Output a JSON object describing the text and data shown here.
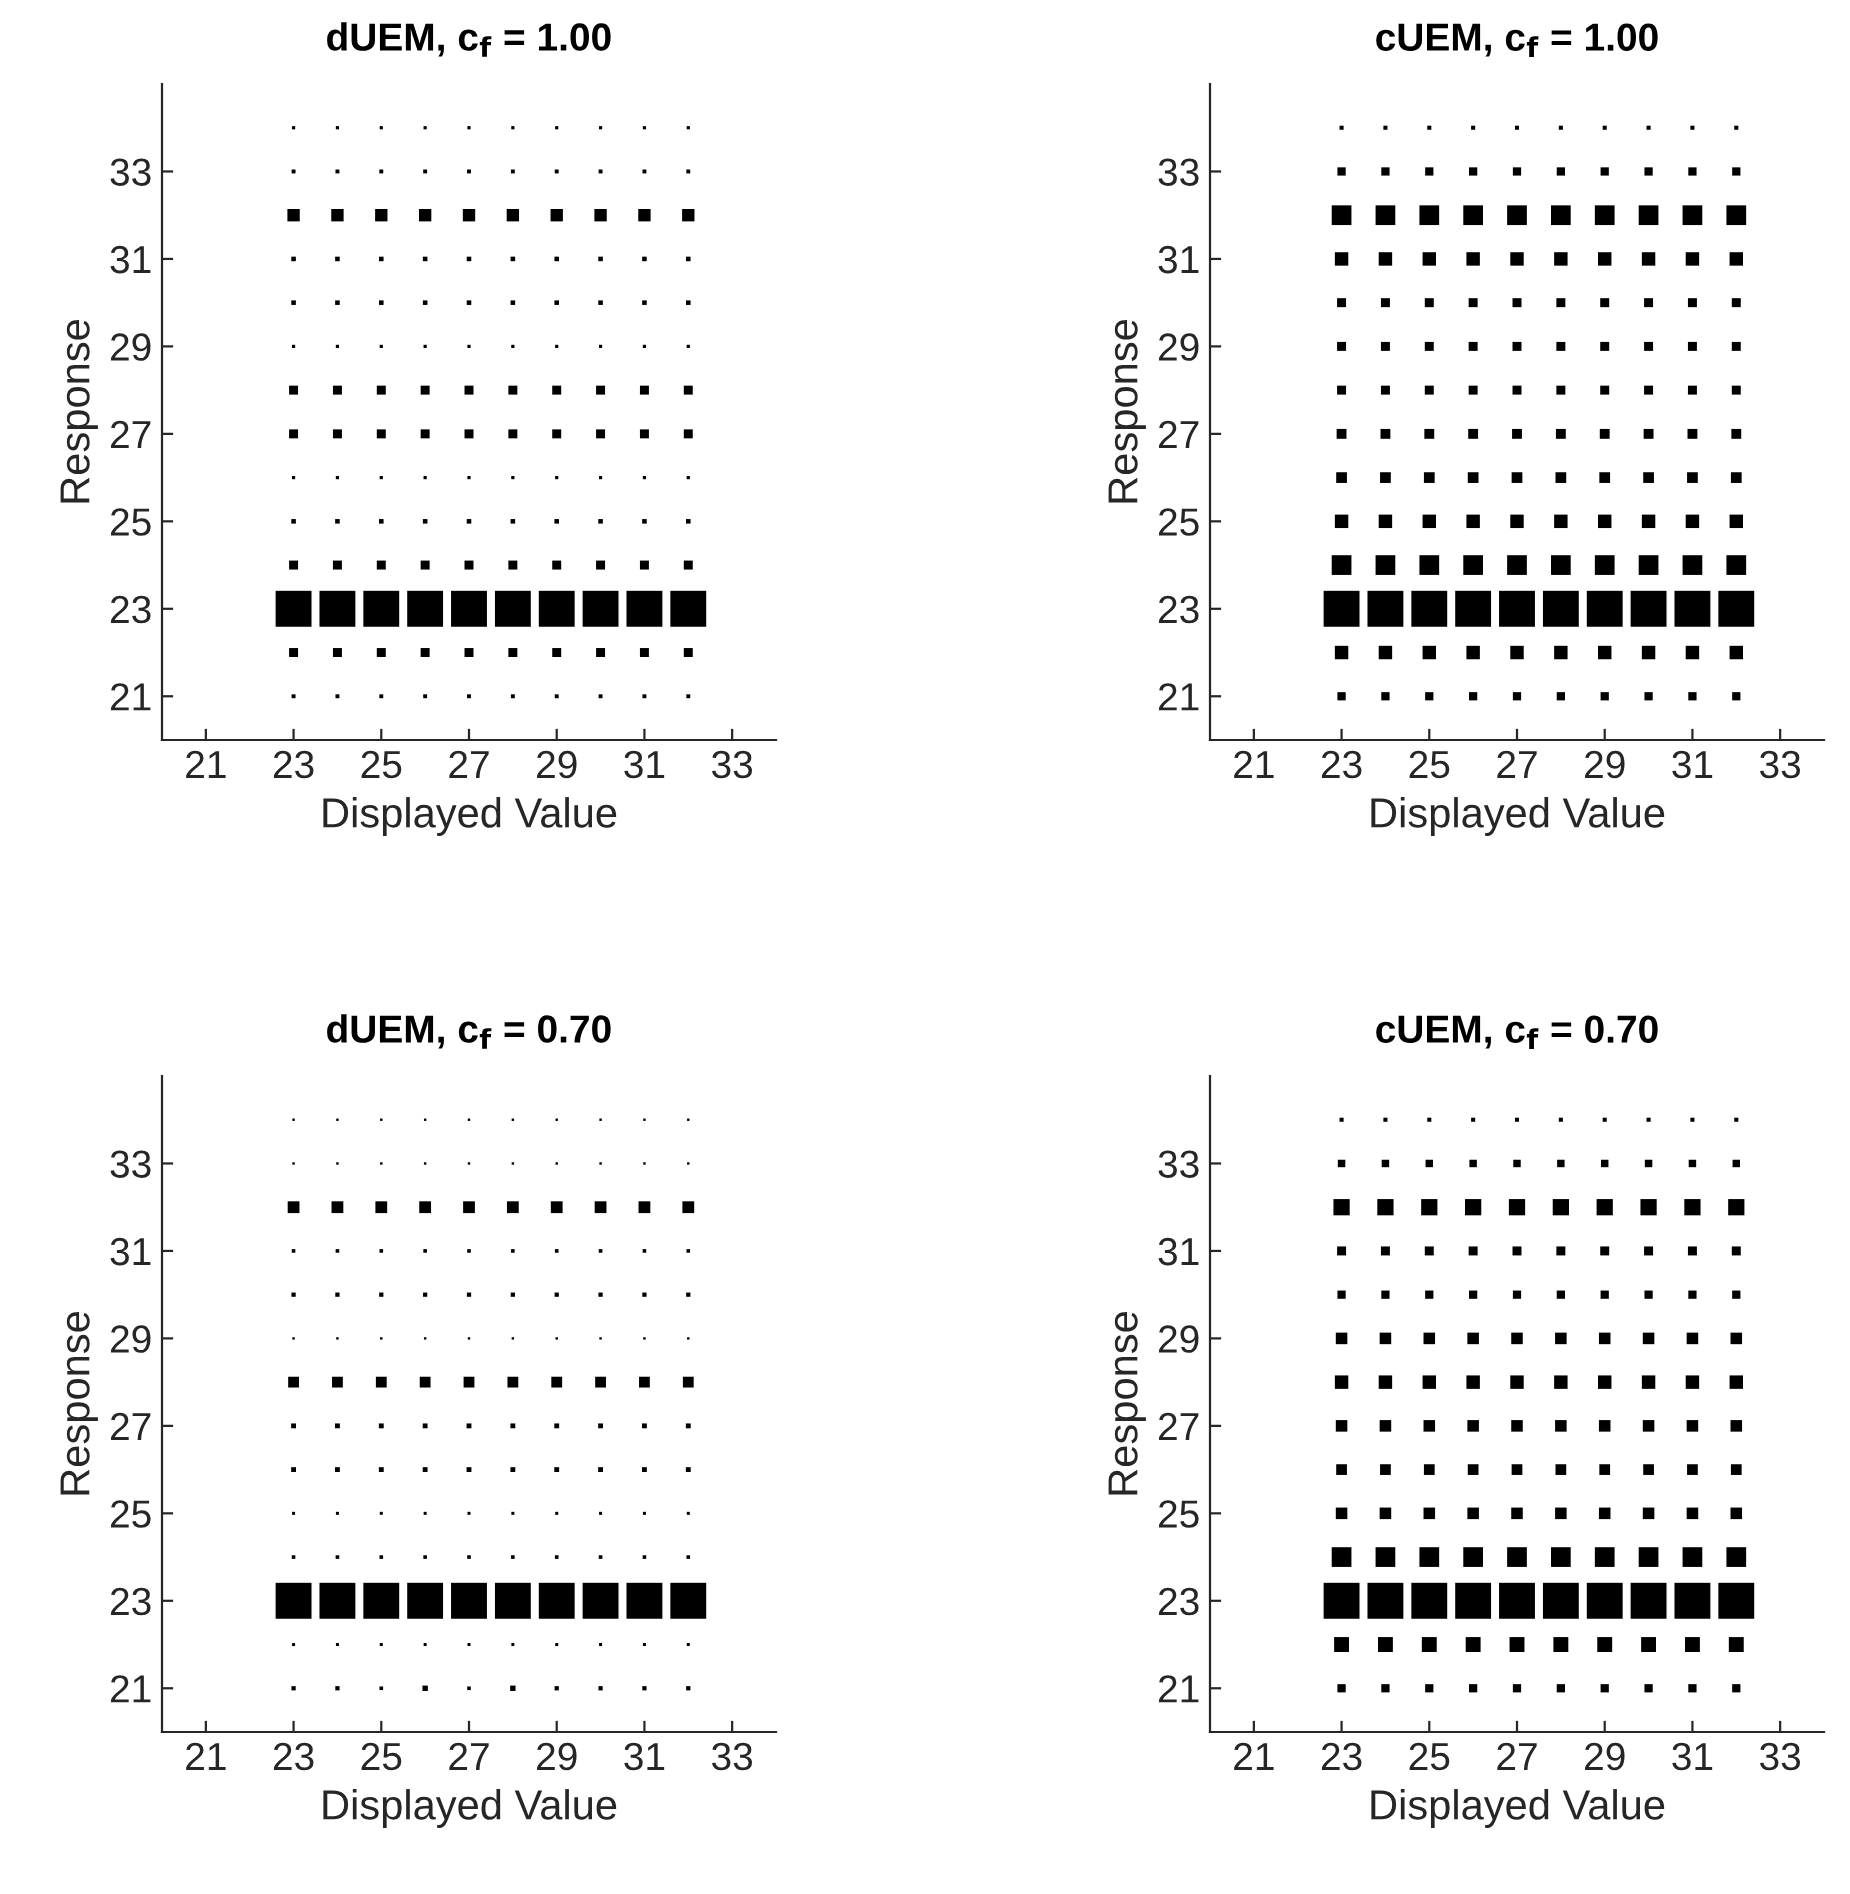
{
  "chart_data": [
    {
      "type": "bubble",
      "title": "dUEM, c$_{f}$ = 1.00",
      "xlabel": "Displayed Value",
      "ylabel": "Response",
      "xlim": [
        20,
        34
      ],
      "ylim": [
        20,
        35
      ],
      "xticks": [
        21,
        23,
        25,
        27,
        29,
        31,
        33
      ],
      "yticks": [
        21,
        23,
        25,
        27,
        29,
        31,
        33
      ],
      "marker": "square",
      "grid": false,
      "series": [
        {
          "color": "#000000",
          "x": [
            23,
            24,
            25,
            26,
            27,
            28,
            29,
            30,
            31,
            32
          ],
          "values": [
            34,
            34,
            34,
            34,
            34,
            34,
            34,
            34,
            34,
            34
          ],
          "sizes": [
            0.0074,
            0.0074,
            0.0074,
            0.0074,
            0.0074,
            0.0074,
            0.0074,
            0.0074,
            0.0074,
            0.0074
          ]
        },
        {
          "color": "#000000",
          "x": [
            23,
            24,
            25,
            26,
            27,
            28,
            29,
            30,
            31,
            32
          ],
          "values": [
            33,
            33,
            33,
            33,
            33,
            33,
            33,
            33,
            33,
            33
          ],
          "sizes": [
            0.011,
            0.011,
            0.011,
            0.011,
            0.011,
            0.011,
            0.011,
            0.011,
            0.011,
            0.011
          ]
        },
        {
          "color": "#000000",
          "x": [
            23,
            24,
            25,
            26,
            27,
            28,
            29,
            30,
            31,
            32
          ],
          "values": [
            32,
            32,
            32,
            32,
            32,
            32,
            32,
            32,
            32,
            32
          ],
          "sizes": [
            0.11,
            0.11,
            0.11,
            0.11,
            0.11,
            0.11,
            0.11,
            0.11,
            0.11,
            0.11
          ]
        },
        {
          "color": "#000000",
          "x": [
            23,
            24,
            25,
            26,
            27,
            28,
            29,
            30,
            31,
            32
          ],
          "values": [
            31,
            31,
            31,
            31,
            31,
            31,
            31,
            31,
            31,
            31
          ],
          "sizes": [
            0.015,
            0.015,
            0.015,
            0.015,
            0.015,
            0.015,
            0.015,
            0.015,
            0.015,
            0.015
          ]
        },
        {
          "color": "#000000",
          "x": [
            23,
            24,
            25,
            26,
            27,
            28,
            29,
            30,
            31,
            32
          ],
          "values": [
            30,
            30,
            30,
            30,
            30,
            30,
            30,
            30,
            30,
            30
          ],
          "sizes": [
            0.015,
            0.015,
            0.015,
            0.015,
            0.015,
            0.015,
            0.015,
            0.015,
            0.015,
            0.015
          ]
        },
        {
          "color": "#000000",
          "x": [
            23,
            24,
            25,
            26,
            27,
            28,
            29,
            30,
            31,
            32
          ],
          "values": [
            29,
            29,
            29,
            29,
            29,
            29,
            29,
            29,
            29,
            29
          ],
          "sizes": [
            0.0074,
            0.0074,
            0.0074,
            0.0074,
            0.0074,
            0.0074,
            0.0074,
            0.0074,
            0.0074,
            0.0074
          ]
        },
        {
          "color": "#000000",
          "x": [
            23,
            24,
            25,
            26,
            27,
            28,
            29,
            30,
            31,
            32
          ],
          "values": [
            28,
            28,
            28,
            28,
            28,
            28,
            28,
            28,
            28,
            28
          ],
          "sizes": [
            0.058,
            0.058,
            0.058,
            0.058,
            0.058,
            0.058,
            0.058,
            0.058,
            0.058,
            0.058
          ]
        },
        {
          "color": "#000000",
          "x": [
            23,
            24,
            25,
            26,
            27,
            28,
            29,
            30,
            31,
            32
          ],
          "values": [
            27,
            27,
            27,
            27,
            27,
            27,
            27,
            27,
            27,
            27
          ],
          "sizes": [
            0.058,
            0.058,
            0.058,
            0.058,
            0.058,
            0.058,
            0.058,
            0.058,
            0.058,
            0.058
          ]
        },
        {
          "color": "#000000",
          "x": [
            23,
            24,
            25,
            26,
            27,
            28,
            29,
            30,
            31,
            32
          ],
          "values": [
            26,
            26,
            26,
            26,
            26,
            26,
            26,
            26,
            26,
            26
          ],
          "sizes": [
            0.0074,
            0.0074,
            0.0074,
            0.0074,
            0.0074,
            0.0074,
            0.0074,
            0.0074,
            0.0074,
            0.0074
          ]
        },
        {
          "color": "#000000",
          "x": [
            23,
            24,
            25,
            26,
            27,
            28,
            29,
            30,
            31,
            32
          ],
          "values": [
            25,
            25,
            25,
            25,
            25,
            25,
            25,
            25,
            25,
            25
          ],
          "sizes": [
            0.015,
            0.015,
            0.015,
            0.015,
            0.015,
            0.015,
            0.015,
            0.015,
            0.015,
            0.015
          ]
        },
        {
          "color": "#000000",
          "x": [
            23,
            24,
            25,
            26,
            27,
            28,
            29,
            30,
            31,
            32
          ],
          "values": [
            24,
            24,
            24,
            24,
            24,
            24,
            24,
            24,
            24,
            24
          ],
          "sizes": [
            0.058,
            0.058,
            0.058,
            0.058,
            0.058,
            0.058,
            0.058,
            0.058,
            0.058,
            0.058
          ]
        },
        {
          "color": "#000000",
          "x": [
            23,
            24,
            25,
            26,
            27,
            28,
            29,
            30,
            31,
            32
          ],
          "values": [
            23,
            23,
            23,
            23,
            23,
            23,
            23,
            23,
            23,
            23
          ],
          "sizes": [
            1,
            1,
            1,
            1,
            1,
            1,
            1,
            1,
            1,
            1
          ]
        },
        {
          "color": "#000000",
          "x": [
            23,
            24,
            25,
            26,
            27,
            28,
            29,
            30,
            31,
            32
          ],
          "values": [
            22,
            22,
            22,
            22,
            22,
            22,
            22,
            22,
            22,
            22
          ],
          "sizes": [
            0.058,
            0.058,
            0.058,
            0.058,
            0.058,
            0.058,
            0.058,
            0.058,
            0.058,
            0.058
          ]
        },
        {
          "color": "#000000",
          "x": [
            23,
            24,
            25,
            26,
            27,
            28,
            29,
            30,
            31,
            32
          ],
          "values": [
            21,
            21,
            21,
            21,
            21,
            21,
            21,
            21,
            21,
            21
          ],
          "sizes": [
            0.011,
            0.011,
            0.011,
            0.011,
            0.011,
            0.011,
            0.011,
            0.011,
            0.011,
            0.011
          ]
        }
      ]
    },
    {
      "type": "bubble",
      "title": "cUEM, c$_{f}$ = 1.00",
      "xlabel": "Displayed Value",
      "ylabel": "Response",
      "xlim": [
        20,
        34
      ],
      "ylim": [
        20,
        35
      ],
      "xticks": [
        21,
        23,
        25,
        27,
        29,
        31,
        33
      ],
      "yticks": [
        21,
        23,
        25,
        27,
        29,
        31,
        33
      ],
      "marker": "square",
      "grid": false,
      "series": [
        {
          "color": "#000000",
          "x": [
            23,
            24,
            25,
            26,
            27,
            28,
            29,
            30,
            31,
            32
          ],
          "values": [
            34,
            34,
            34,
            34,
            34,
            34,
            34,
            34,
            34,
            34
          ],
          "sizes": [
            0.012,
            0.012,
            0.012,
            0.012,
            0.012,
            0.012,
            0.012,
            0.012,
            0.012,
            0.012
          ]
        },
        {
          "color": "#000000",
          "x": [
            23,
            24,
            25,
            26,
            27,
            28,
            29,
            30,
            31,
            32
          ],
          "values": [
            33,
            33,
            33,
            33,
            33,
            33,
            33,
            33,
            33,
            33
          ],
          "sizes": [
            0.049,
            0.049,
            0.049,
            0.049,
            0.049,
            0.049,
            0.049,
            0.049,
            0.049,
            0.049
          ]
        },
        {
          "color": "#000000",
          "x": [
            23,
            24,
            25,
            26,
            27,
            28,
            29,
            30,
            31,
            32
          ],
          "values": [
            32,
            32,
            32,
            32,
            32,
            32,
            32,
            32,
            32,
            32
          ],
          "sizes": [
            0.28,
            0.28,
            0.28,
            0.28,
            0.28,
            0.28,
            0.28,
            0.28,
            0.28,
            0.28
          ]
        },
        {
          "color": "#000000",
          "x": [
            23,
            24,
            25,
            26,
            27,
            28,
            29,
            30,
            31,
            32
          ],
          "values": [
            31,
            31,
            31,
            31,
            31,
            31,
            31,
            31,
            31,
            31
          ],
          "sizes": [
            0.13,
            0.13,
            0.13,
            0.13,
            0.13,
            0.13,
            0.13,
            0.13,
            0.13,
            0.13
          ]
        },
        {
          "color": "#000000",
          "x": [
            23,
            24,
            25,
            26,
            27,
            28,
            29,
            30,
            31,
            32
          ],
          "values": [
            30,
            30,
            30,
            30,
            30,
            30,
            30,
            30,
            30,
            30
          ],
          "sizes": [
            0.058,
            0.058,
            0.058,
            0.058,
            0.058,
            0.058,
            0.058,
            0.058,
            0.058,
            0.058
          ]
        },
        {
          "color": "#000000",
          "x": [
            23,
            24,
            25,
            26,
            27,
            28,
            29,
            30,
            31,
            32
          ],
          "values": [
            29,
            29,
            29,
            29,
            29,
            29,
            29,
            29,
            29,
            29
          ],
          "sizes": [
            0.058,
            0.058,
            0.058,
            0.058,
            0.058,
            0.058,
            0.058,
            0.058,
            0.058,
            0.058
          ]
        },
        {
          "color": "#000000",
          "x": [
            23,
            24,
            25,
            26,
            27,
            28,
            29,
            30,
            31,
            32
          ],
          "values": [
            28,
            28,
            28,
            28,
            28,
            28,
            28,
            28,
            28,
            28
          ],
          "sizes": [
            0.058,
            0.058,
            0.058,
            0.058,
            0.058,
            0.058,
            0.058,
            0.058,
            0.058,
            0.058
          ]
        },
        {
          "color": "#000000",
          "x": [
            23,
            24,
            25,
            26,
            27,
            28,
            29,
            30,
            31,
            32
          ],
          "values": [
            27,
            27,
            27,
            27,
            27,
            27,
            27,
            27,
            27,
            27
          ],
          "sizes": [
            0.07,
            0.07,
            0.07,
            0.07,
            0.07,
            0.07,
            0.07,
            0.07,
            0.07,
            0.07
          ]
        },
        {
          "color": "#000000",
          "x": [
            23,
            24,
            25,
            26,
            27,
            28,
            29,
            30,
            31,
            32
          ],
          "values": [
            26,
            26,
            26,
            26,
            26,
            26,
            26,
            26,
            26,
            26
          ],
          "sizes": [
            0.083,
            0.083,
            0.083,
            0.083,
            0.083,
            0.083,
            0.083,
            0.083,
            0.083,
            0.083
          ]
        },
        {
          "color": "#000000",
          "x": [
            23,
            24,
            25,
            26,
            27,
            28,
            29,
            30,
            31,
            32
          ],
          "values": [
            25,
            25,
            25,
            25,
            25,
            25,
            25,
            25,
            25,
            25
          ],
          "sizes": [
            0.13,
            0.13,
            0.13,
            0.13,
            0.13,
            0.13,
            0.13,
            0.13,
            0.13,
            0.13
          ]
        },
        {
          "color": "#000000",
          "x": [
            23,
            24,
            25,
            26,
            27,
            28,
            29,
            30,
            31,
            32
          ],
          "values": [
            24,
            24,
            24,
            24,
            24,
            24,
            24,
            24,
            24,
            24
          ],
          "sizes": [
            0.28,
            0.28,
            0.28,
            0.28,
            0.28,
            0.28,
            0.28,
            0.28,
            0.28,
            0.28
          ]
        },
        {
          "color": "#000000",
          "x": [
            23,
            24,
            25,
            26,
            27,
            28,
            29,
            30,
            31,
            32
          ],
          "values": [
            23,
            23,
            23,
            23,
            23,
            23,
            23,
            23,
            23,
            23
          ],
          "sizes": [
            1,
            1,
            1,
            1,
            1,
            1,
            1,
            1,
            1,
            1
          ]
        },
        {
          "color": "#000000",
          "x": [
            23,
            24,
            25,
            26,
            27,
            28,
            29,
            30,
            31,
            32
          ],
          "values": [
            22,
            22,
            22,
            22,
            22,
            22,
            22,
            22,
            22,
            22
          ],
          "sizes": [
            0.13,
            0.13,
            0.13,
            0.13,
            0.13,
            0.13,
            0.13,
            0.13,
            0.13,
            0.13
          ]
        },
        {
          "color": "#000000",
          "x": [
            23,
            24,
            25,
            26,
            27,
            28,
            29,
            30,
            31,
            32
          ],
          "values": [
            21,
            21,
            21,
            21,
            21,
            21,
            21,
            21,
            21,
            21
          ],
          "sizes": [
            0.049,
            0.049,
            0.049,
            0.049,
            0.049,
            0.049,
            0.049,
            0.049,
            0.049,
            0.049
          ]
        }
      ]
    },
    {
      "type": "bubble",
      "title": "dUEM, c$_{f}$ = 0.70",
      "xlabel": "Displayed Value",
      "ylabel": "Response",
      "xlim": [
        20,
        34
      ],
      "ylim": [
        20,
        35
      ],
      "xticks": [
        21,
        23,
        25,
        27,
        29,
        31,
        33
      ],
      "yticks": [
        21,
        23,
        25,
        27,
        29,
        31,
        33
      ],
      "marker": "square",
      "grid": false,
      "series": [
        {
          "color": "#000000",
          "x": [
            23,
            24,
            25,
            26,
            27,
            28,
            29,
            30,
            31,
            32
          ],
          "values": [
            34,
            34,
            34,
            34,
            34,
            34,
            34,
            34,
            34,
            34
          ],
          "sizes": [
            0.0042,
            0.0042,
            0.0042,
            0.0042,
            0.0042,
            0.0042,
            0.0042,
            0.0042,
            0.0042,
            0.0042
          ]
        },
        {
          "color": "#000000",
          "x": [
            23,
            24,
            25,
            26,
            27,
            28,
            29,
            30,
            31,
            32
          ],
          "values": [
            33,
            33,
            33,
            33,
            33,
            33,
            33,
            33,
            33,
            33
          ],
          "sizes": [
            0.0042,
            0.0042,
            0.0042,
            0.0042,
            0.0042,
            0.0042,
            0.0042,
            0.0042,
            0.0042,
            0.0042
          ]
        },
        {
          "color": "#000000",
          "x": [
            23,
            24,
            25,
            26,
            27,
            28,
            29,
            30,
            31,
            32
          ],
          "values": [
            32,
            32,
            32,
            32,
            32,
            32,
            32,
            32,
            32,
            32
          ],
          "sizes": [
            0.1,
            0.1,
            0.1,
            0.1,
            0.1,
            0.1,
            0.1,
            0.1,
            0.1,
            0.1
          ]
        },
        {
          "color": "#000000",
          "x": [
            23,
            24,
            25,
            26,
            27,
            28,
            29,
            30,
            31,
            32
          ],
          "values": [
            31,
            31,
            31,
            31,
            31,
            31,
            31,
            31,
            31,
            31
          ],
          "sizes": [
            0.0094,
            0.0094,
            0.0094,
            0.0094,
            0.0094,
            0.0094,
            0.0094,
            0.0094,
            0.0094,
            0.0094
          ]
        },
        {
          "color": "#000000",
          "x": [
            23,
            24,
            25,
            26,
            27,
            28,
            29,
            30,
            31,
            32
          ],
          "values": [
            30,
            30,
            30,
            30,
            30,
            30,
            30,
            30,
            30,
            30
          ],
          "sizes": [
            0.013,
            0.013,
            0.013,
            0.013,
            0.013,
            0.013,
            0.013,
            0.013,
            0.013,
            0.013
          ]
        },
        {
          "color": "#000000",
          "x": [
            23,
            24,
            25,
            26,
            27,
            28,
            29,
            30,
            31,
            32
          ],
          "values": [
            29,
            29,
            29,
            29,
            29,
            29,
            29,
            29,
            29,
            29
          ],
          "sizes": [
            0.0042,
            0.0042,
            0.0042,
            0.0042,
            0.0042,
            0.0042,
            0.0042,
            0.0042,
            0.0042,
            0.0042
          ]
        },
        {
          "color": "#000000",
          "x": [
            23,
            24,
            25,
            26,
            27,
            28,
            29,
            30,
            31,
            32
          ],
          "values": [
            28,
            28,
            28,
            28,
            28,
            28,
            28,
            28,
            28,
            28
          ],
          "sizes": [
            0.084,
            0.084,
            0.084,
            0.084,
            0.084,
            0.084,
            0.084,
            0.084,
            0.084,
            0.084
          ]
        },
        {
          "color": "#000000",
          "x": [
            23,
            24,
            25,
            26,
            27,
            28,
            29,
            30,
            31,
            32
          ],
          "values": [
            27,
            27,
            27,
            27,
            27,
            27,
            27,
            27,
            27,
            27
          ],
          "sizes": [
            0.017,
            0.017,
            0.017,
            0.017,
            0.017,
            0.017,
            0.017,
            0.017,
            0.017,
            0.017
          ]
        },
        {
          "color": "#000000",
          "x": [
            23,
            24,
            25,
            26,
            27,
            28,
            29,
            30,
            31,
            32
          ],
          "values": [
            26,
            26,
            26,
            26,
            26,
            26,
            26,
            26,
            26,
            26
          ],
          "sizes": [
            0.017,
            0.017,
            0.017,
            0.017,
            0.017,
            0.017,
            0.017,
            0.017,
            0.017,
            0.017
          ]
        },
        {
          "color": "#000000",
          "x": [
            23,
            24,
            25,
            26,
            27,
            28,
            29,
            30,
            31,
            32
          ],
          "values": [
            25,
            25,
            25,
            25,
            25,
            25,
            25,
            25,
            25,
            25
          ],
          "sizes": [
            0.0065,
            0.0065,
            0.0065,
            0.0065,
            0.0065,
            0.0065,
            0.0065,
            0.0065,
            0.0065,
            0.0065
          ]
        },
        {
          "color": "#000000",
          "x": [
            23,
            24,
            25,
            26,
            27,
            28,
            29,
            30,
            31,
            32
          ],
          "values": [
            24,
            24,
            24,
            24,
            24,
            24,
            24,
            24,
            24,
            24
          ],
          "sizes": [
            0.0094,
            0.0094,
            0.0094,
            0.0094,
            0.0094,
            0.0094,
            0.0094,
            0.0094,
            0.0094,
            0.0094
          ]
        },
        {
          "color": "#000000",
          "x": [
            23,
            24,
            25,
            26,
            27,
            28,
            29,
            30,
            31,
            32
          ],
          "values": [
            23,
            23,
            23,
            23,
            23,
            23,
            23,
            23,
            23,
            23
          ],
          "sizes": [
            1,
            1,
            1,
            1,
            1,
            1,
            1,
            1,
            1,
            1
          ]
        },
        {
          "color": "#000000",
          "x": [
            23,
            24,
            25,
            26,
            27,
            28,
            29,
            30,
            31,
            32
          ],
          "values": [
            22,
            22,
            22,
            22,
            22,
            22,
            22,
            22,
            22,
            22
          ],
          "sizes": [
            0.0065,
            0.0065,
            0.0065,
            0.0065,
            0.0065,
            0.0065,
            0.0065,
            0.0065,
            0.0065,
            0.0065
          ]
        },
        {
          "color": "#000000",
          "x": [
            23,
            24,
            25,
            26,
            27,
            28,
            29,
            30,
            31,
            32
          ],
          "values": [
            21,
            21,
            21,
            21,
            21,
            21,
            21,
            21,
            21,
            21
          ],
          "sizes": [
            0.013,
            0.013,
            0.0094,
            0.021,
            0.0094,
            0.021,
            0.013,
            0.013,
            0.013,
            0.013
          ]
        }
      ]
    },
    {
      "type": "bubble",
      "title": "cUEM, c$_{f}$ = 0.70",
      "xlabel": "Displayed Value",
      "ylabel": "Response",
      "xlim": [
        20,
        34
      ],
      "ylim": [
        20,
        35
      ],
      "xticks": [
        21,
        23,
        25,
        27,
        29,
        31,
        33
      ],
      "yticks": [
        21,
        23,
        25,
        27,
        29,
        31,
        33
      ],
      "marker": "square",
      "grid": false,
      "series": [
        {
          "color": "#000000",
          "x": [
            23,
            24,
            25,
            26,
            27,
            28,
            29,
            30,
            31,
            32
          ],
          "values": [
            34,
            34,
            34,
            34,
            34,
            34,
            34,
            34,
            34,
            34
          ],
          "sizes": [
            0.012,
            0.012,
            0.012,
            0.012,
            0.012,
            0.012,
            0.012,
            0.012,
            0.012,
            0.012
          ]
        },
        {
          "color": "#000000",
          "x": [
            23,
            24,
            25,
            26,
            27,
            28,
            29,
            30,
            31,
            32
          ],
          "values": [
            33,
            33,
            33,
            33,
            33,
            33,
            33,
            33,
            33,
            33
          ],
          "sizes": [
            0.04,
            0.04,
            0.04,
            0.04,
            0.04,
            0.04,
            0.04,
            0.04,
            0.04,
            0.04
          ]
        },
        {
          "color": "#000000",
          "x": [
            23,
            24,
            25,
            26,
            27,
            28,
            29,
            30,
            31,
            32
          ],
          "values": [
            32,
            32,
            32,
            32,
            32,
            32,
            32,
            32,
            32,
            32
          ],
          "sizes": [
            0.19,
            0.19,
            0.19,
            0.19,
            0.19,
            0.19,
            0.19,
            0.19,
            0.19,
            0.19
          ]
        },
        {
          "color": "#000000",
          "x": [
            23,
            24,
            25,
            26,
            27,
            28,
            29,
            30,
            31,
            32
          ],
          "values": [
            31,
            31,
            31,
            31,
            31,
            31,
            31,
            31,
            31,
            31
          ],
          "sizes": [
            0.058,
            0.058,
            0.058,
            0.058,
            0.058,
            0.058,
            0.058,
            0.058,
            0.058,
            0.058
          ]
        },
        {
          "color": "#000000",
          "x": [
            23,
            24,
            25,
            26,
            27,
            28,
            29,
            30,
            31,
            32
          ],
          "values": [
            30,
            30,
            30,
            30,
            30,
            30,
            30,
            30,
            30,
            30
          ],
          "sizes": [
            0.049,
            0.049,
            0.049,
            0.049,
            0.049,
            0.049,
            0.049,
            0.049,
            0.049,
            0.049
          ]
        },
        {
          "color": "#000000",
          "x": [
            23,
            24,
            25,
            26,
            27,
            28,
            29,
            30,
            31,
            32
          ],
          "values": [
            29,
            29,
            29,
            29,
            29,
            29,
            29,
            29,
            29,
            29
          ],
          "sizes": [
            0.096,
            0.096,
            0.096,
            0.096,
            0.096,
            0.096,
            0.096,
            0.096,
            0.096,
            0.096
          ]
        },
        {
          "color": "#000000",
          "x": [
            23,
            24,
            25,
            26,
            27,
            28,
            29,
            30,
            31,
            32
          ],
          "values": [
            28,
            28,
            28,
            28,
            28,
            28,
            28,
            28,
            28,
            28
          ],
          "sizes": [
            0.13,
            0.13,
            0.13,
            0.13,
            0.13,
            0.13,
            0.13,
            0.13,
            0.13,
            0.13
          ]
        },
        {
          "color": "#000000",
          "x": [
            23,
            24,
            25,
            26,
            27,
            28,
            29,
            30,
            31,
            32
          ],
          "values": [
            27,
            27,
            27,
            27,
            27,
            27,
            27,
            27,
            27,
            27
          ],
          "sizes": [
            0.096,
            0.096,
            0.096,
            0.096,
            0.096,
            0.096,
            0.096,
            0.096,
            0.096,
            0.096
          ]
        },
        {
          "color": "#000000",
          "x": [
            23,
            24,
            25,
            26,
            27,
            28,
            29,
            30,
            31,
            32
          ],
          "values": [
            26,
            26,
            26,
            26,
            26,
            26,
            26,
            26,
            26,
            26
          ],
          "sizes": [
            0.083,
            0.083,
            0.083,
            0.083,
            0.083,
            0.083,
            0.083,
            0.083,
            0.083,
            0.083
          ]
        },
        {
          "color": "#000000",
          "x": [
            23,
            24,
            25,
            26,
            27,
            28,
            29,
            30,
            31,
            32
          ],
          "values": [
            25,
            25,
            25,
            25,
            25,
            25,
            25,
            25,
            25,
            25
          ],
          "sizes": [
            0.096,
            0.096,
            0.096,
            0.096,
            0.096,
            0.096,
            0.096,
            0.096,
            0.096,
            0.096
          ]
        },
        {
          "color": "#000000",
          "x": [
            23,
            24,
            25,
            26,
            27,
            28,
            29,
            30,
            31,
            32
          ],
          "values": [
            24,
            24,
            24,
            24,
            24,
            24,
            24,
            24,
            24,
            24
          ],
          "sizes": [
            0.28,
            0.28,
            0.28,
            0.28,
            0.28,
            0.28,
            0.28,
            0.28,
            0.28,
            0.28
          ]
        },
        {
          "color": "#000000",
          "x": [
            23,
            24,
            25,
            26,
            27,
            28,
            29,
            30,
            31,
            32
          ],
          "values": [
            23,
            23,
            23,
            23,
            23,
            23,
            23,
            23,
            23,
            23
          ],
          "sizes": [
            1,
            1,
            1,
            1,
            1,
            1,
            1,
            1,
            1,
            1
          ]
        },
        {
          "color": "#000000",
          "x": [
            23,
            24,
            25,
            26,
            27,
            28,
            29,
            30,
            31,
            32
          ],
          "values": [
            22,
            22,
            22,
            22,
            22,
            22,
            22,
            22,
            22,
            22
          ],
          "sizes": [
            0.16,
            0.16,
            0.16,
            0.16,
            0.16,
            0.16,
            0.16,
            0.16,
            0.16,
            0.16
          ]
        },
        {
          "color": "#000000",
          "x": [
            23,
            24,
            25,
            26,
            27,
            28,
            29,
            30,
            31,
            32
          ],
          "values": [
            21,
            21,
            21,
            21,
            21,
            21,
            21,
            21,
            21,
            21
          ],
          "sizes": [
            0.049,
            0.049,
            0.049,
            0.049,
            0.049,
            0.049,
            0.049,
            0.049,
            0.049,
            0.049
          ]
        }
      ]
    }
  ]
}
